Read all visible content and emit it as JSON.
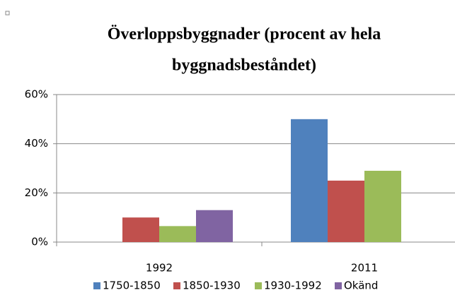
{
  "chart_data": {
    "type": "bar",
    "title": [
      "Överloppsbyggnader  (procent av hela",
      "byggnadsbeståndet)"
    ],
    "categories": [
      "1992",
      "2011"
    ],
    "series": [
      {
        "name": "1750-1850",
        "color": "#4f81bd",
        "values": [
          null,
          50
        ]
      },
      {
        "name": "1850-1930",
        "color": "#c0504d",
        "values": [
          10,
          25
        ]
      },
      {
        "name": "1930-1992",
        "color": "#9bbb59",
        "values": [
          6.5,
          29
        ]
      },
      {
        "name": "Okänd",
        "color": "#8064a2",
        "values": [
          13,
          null
        ]
      }
    ],
    "ylim": [
      0,
      60
    ],
    "yticks": [
      {
        "value": 0,
        "label": "0%"
      },
      {
        "value": 20,
        "label": "20%"
      },
      {
        "value": 40,
        "label": "40%"
      },
      {
        "value": 60,
        "label": "60%"
      }
    ],
    "grid": true,
    "legend": "bottom"
  }
}
